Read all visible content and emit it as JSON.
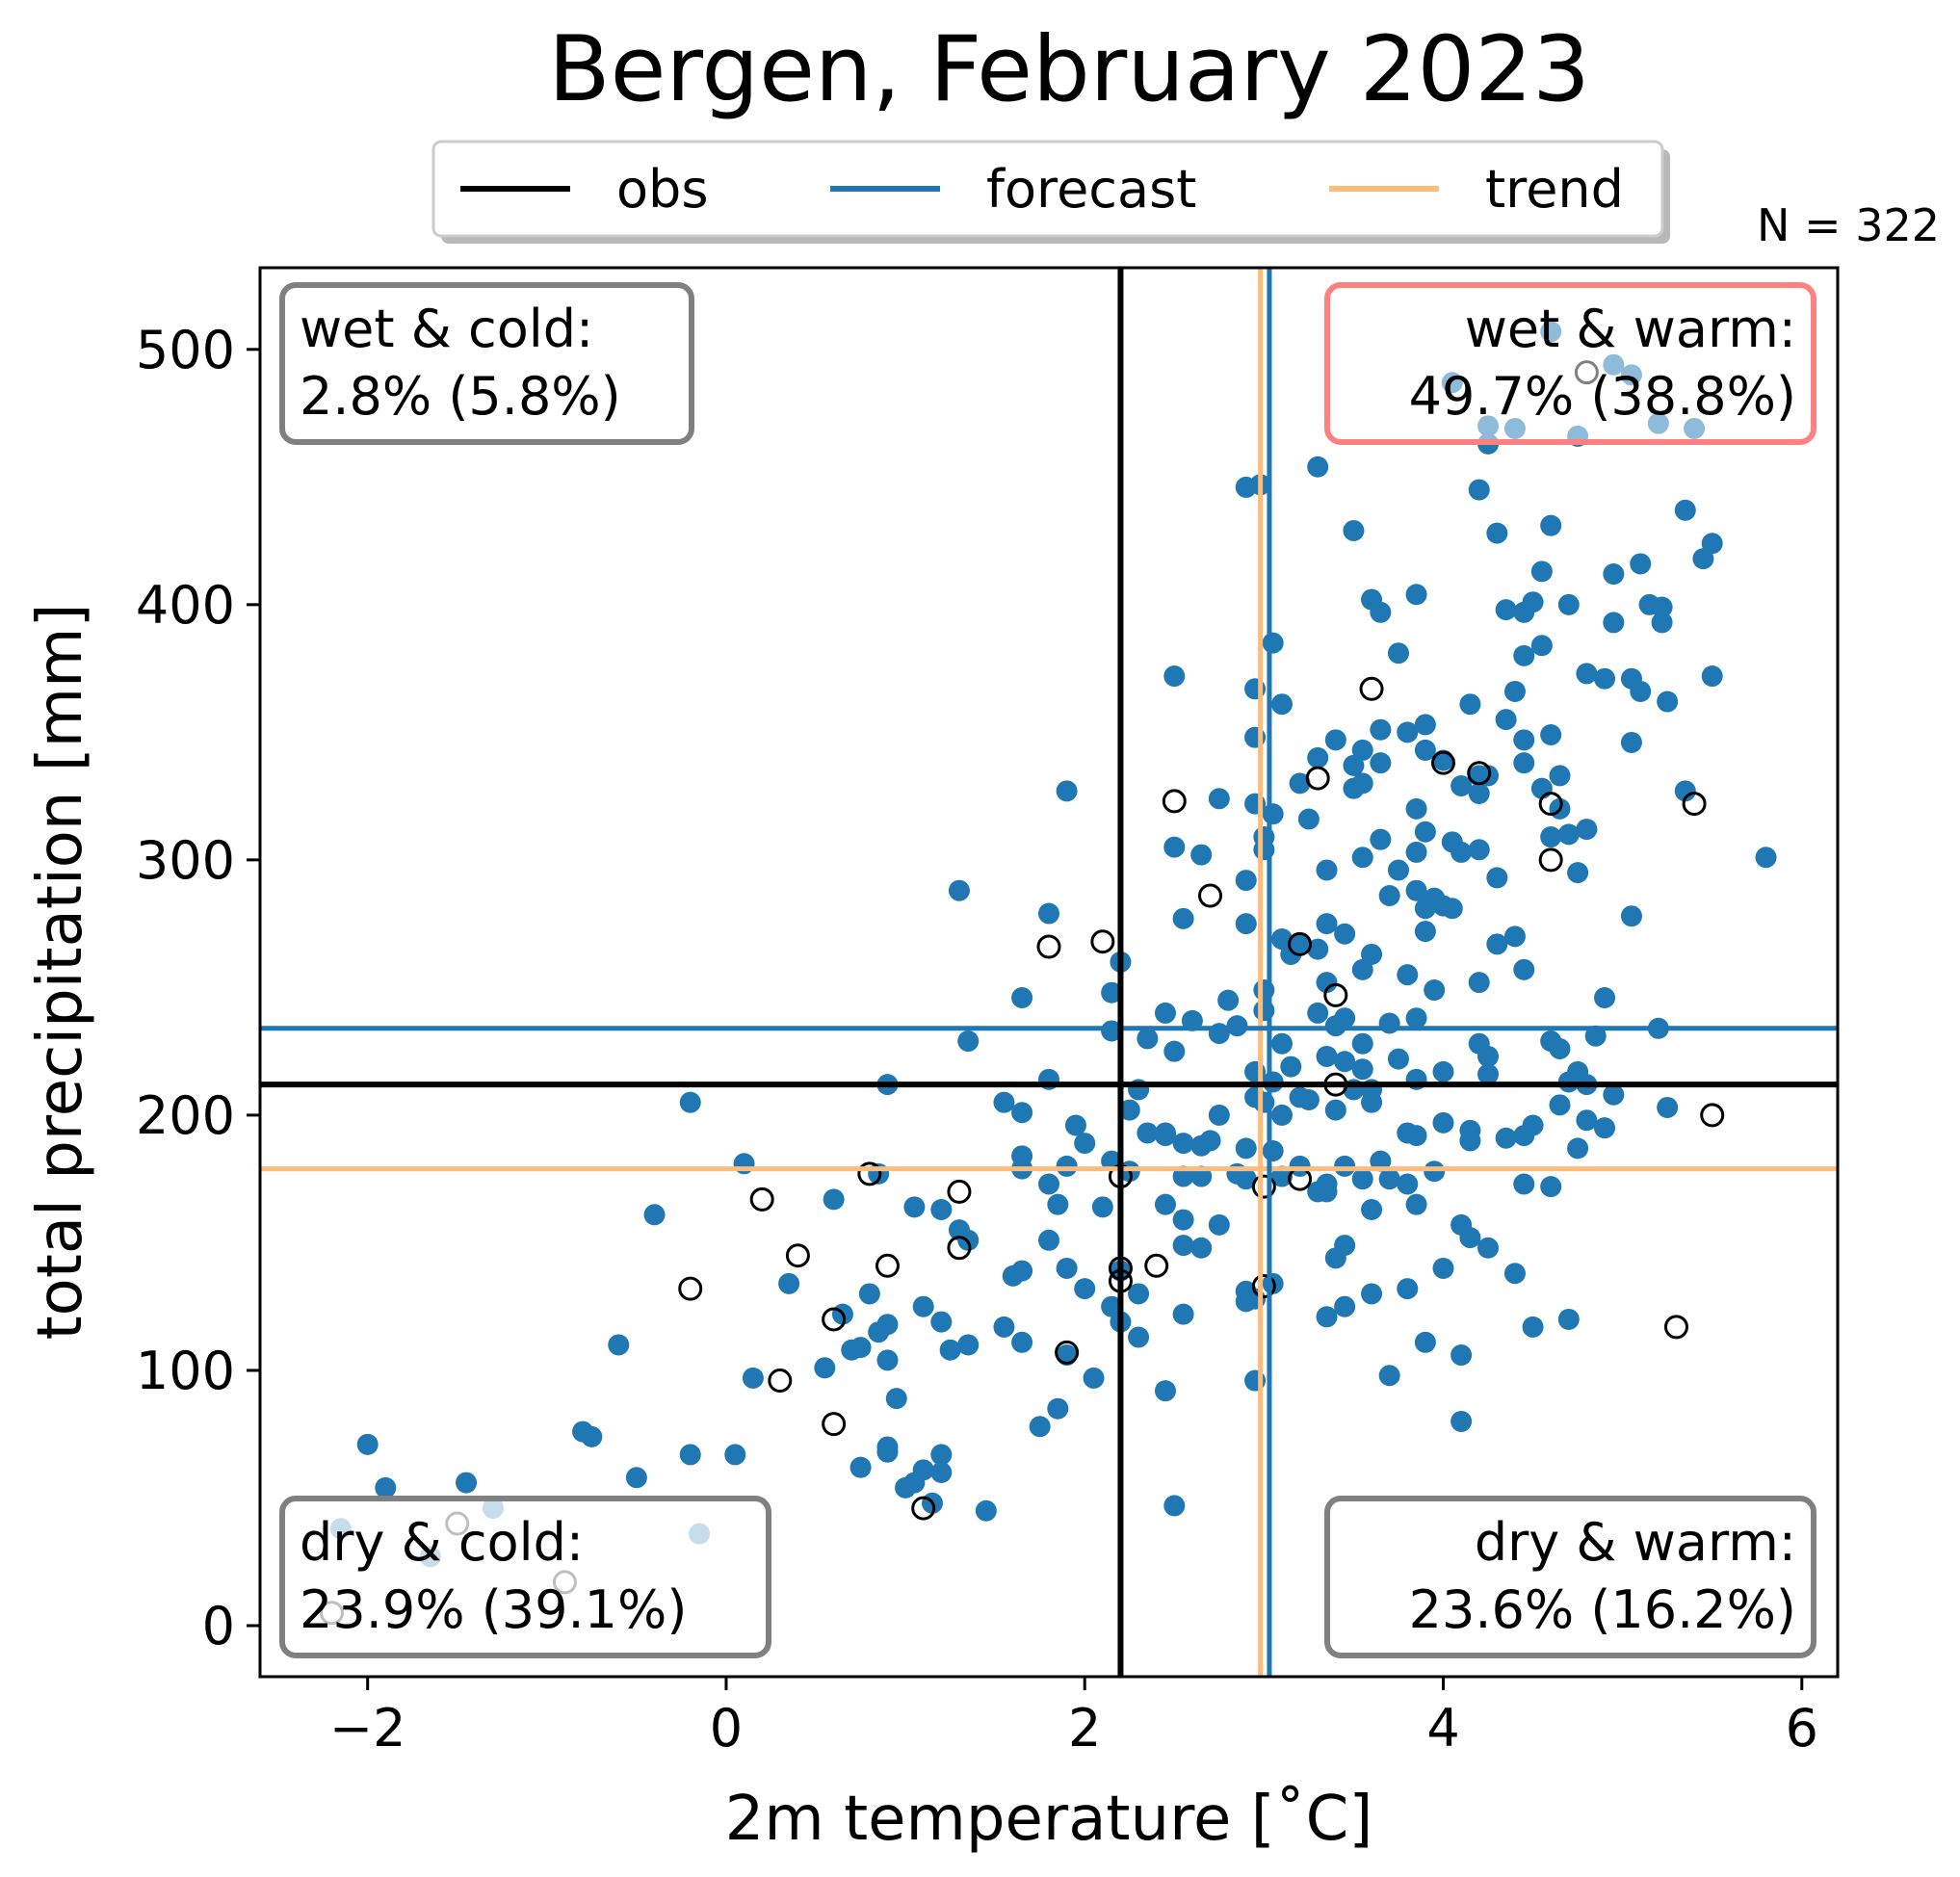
{
  "chart_data": {
    "type": "scatter",
    "title": "Bergen, February 2023",
    "xlabel": "2m temperature [˚C]",
    "ylabel": "total precipitation [mm]",
    "xlim": [
      -2.6,
      6.2
    ],
    "ylim": [
      -20,
      532
    ],
    "xticks": [
      -2,
      0,
      2,
      4,
      6
    ],
    "xtick_labels": [
      "−2",
      "0",
      "2",
      "4",
      "6"
    ],
    "yticks": [
      0,
      100,
      200,
      300,
      400,
      500
    ],
    "ytick_labels": [
      "0",
      "100",
      "200",
      "300",
      "400",
      "500"
    ],
    "grid": false,
    "legend_placement": "top-center",
    "count_label": "N = 322",
    "legend": [
      {
        "name": "obs",
        "color": "#000000"
      },
      {
        "name": "forecast",
        "color": "#1f77b4"
      },
      {
        "name": "trend",
        "color": "#ffbb78"
      }
    ],
    "reference_lines": {
      "obs": {
        "x": 2.2,
        "y": 212,
        "color": "#000000"
      },
      "forecast": {
        "x": 3.03,
        "y": 234,
        "color": "#1f77b4"
      },
      "trend": {
        "x": 2.98,
        "y": 179,
        "color": "#ffbb78"
      }
    },
    "quadrants": [
      {
        "line1": "wet & cold:",
        "line2": "2.8% (5.8%)",
        "position": "top-left",
        "edge": "#808080"
      },
      {
        "line1": "wet & warm:",
        "line2": "49.7% (38.8%)",
        "position": "top-right",
        "edge": "#ff8080"
      },
      {
        "line1": "dry & cold:",
        "line2": "23.9% (39.1%)",
        "position": "bottom-left",
        "edge": "#808080"
      },
      {
        "line1": "dry & warm:",
        "line2": "23.6% (16.2%)",
        "position": "bottom-right",
        "edge": "#808080"
      }
    ],
    "forecast_points": [
      [
        4.6,
        507
      ],
      [
        4.95,
        494
      ],
      [
        5.05,
        490
      ],
      [
        4.05,
        487
      ],
      [
        4.25,
        470
      ],
      [
        4.4,
        469
      ],
      [
        4.75,
        466
      ],
      [
        5.2,
        471
      ],
      [
        5.4,
        469
      ],
      [
        4.25,
        463
      ],
      [
        2.9,
        446
      ],
      [
        2.98,
        447
      ],
      [
        3.3,
        454
      ],
      [
        4.2,
        445
      ],
      [
        3.5,
        429
      ],
      [
        4.3,
        428
      ],
      [
        4.6,
        431
      ],
      [
        5.35,
        437
      ],
      [
        5.5,
        424
      ],
      [
        5.45,
        418
      ],
      [
        4.55,
        413
      ],
      [
        4.95,
        412
      ],
      [
        5.1,
        416
      ],
      [
        3.6,
        402
      ],
      [
        3.65,
        397
      ],
      [
        3.85,
        404
      ],
      [
        4.35,
        398
      ],
      [
        4.45,
        397
      ],
      [
        4.5,
        401
      ],
      [
        4.7,
        400
      ],
      [
        4.95,
        393
      ],
      [
        5.15,
        400
      ],
      [
        5.22,
        399
      ],
      [
        5.22,
        393
      ],
      [
        3.05,
        385
      ],
      [
        3.75,
        381
      ],
      [
        4.55,
        384
      ],
      [
        4.45,
        380
      ],
      [
        4.8,
        373
      ],
      [
        4.9,
        371
      ],
      [
        5.05,
        371
      ],
      [
        5.1,
        366
      ],
      [
        5.25,
        362
      ],
      [
        5.5,
        372
      ],
      [
        2.5,
        372
      ],
      [
        2.95,
        367
      ],
      [
        3.1,
        361
      ],
      [
        4.15,
        361
      ],
      [
        4.4,
        366
      ],
      [
        2.95,
        348
      ],
      [
        3.4,
        347
      ],
      [
        3.55,
        343
      ],
      [
        3.65,
        351
      ],
      [
        3.8,
        350
      ],
      [
        3.9,
        353
      ],
      [
        3.3,
        340
      ],
      [
        3.5,
        337
      ],
      [
        3.65,
        338
      ],
      [
        3.9,
        343
      ],
      [
        4.0,
        339
      ],
      [
        4.2,
        333
      ],
      [
        4.35,
        355
      ],
      [
        4.45,
        347
      ],
      [
        4.45,
        338
      ],
      [
        4.6,
        349
      ],
      [
        5.05,
        346
      ],
      [
        1.9,
        327
      ],
      [
        2.75,
        324
      ],
      [
        2.95,
        322
      ],
      [
        3.05,
        318
      ],
      [
        3.2,
        330
      ],
      [
        3.5,
        328
      ],
      [
        3.55,
        330
      ],
      [
        3.85,
        320
      ],
      [
        3.9,
        311
      ],
      [
        4.1,
        329
      ],
      [
        4.2,
        326
      ],
      [
        4.25,
        333
      ],
      [
        4.55,
        328
      ],
      [
        4.65,
        333
      ],
      [
        4.65,
        320
      ],
      [
        4.6,
        309
      ],
      [
        4.7,
        310
      ],
      [
        4.8,
        312
      ],
      [
        5.35,
        327
      ],
      [
        5.8,
        301
      ],
      [
        2.5,
        305
      ],
      [
        2.65,
        302
      ],
      [
        2.9,
        292
      ],
      [
        3.0,
        309
      ],
      [
        3.0,
        304
      ],
      [
        3.25,
        316
      ],
      [
        3.35,
        296
      ],
      [
        3.55,
        301
      ],
      [
        3.65,
        308
      ],
      [
        3.75,
        296
      ],
      [
        3.85,
        303
      ],
      [
        4.05,
        307
      ],
      [
        4.1,
        303
      ],
      [
        4.2,
        304
      ],
      [
        4.3,
        293
      ],
      [
        4.75,
        295
      ],
      [
        1.3,
        288
      ],
      [
        1.8,
        279
      ],
      [
        2.55,
        277
      ],
      [
        2.9,
        275
      ],
      [
        3.1,
        269
      ],
      [
        3.2,
        267
      ],
      [
        3.35,
        275
      ],
      [
        3.45,
        271
      ],
      [
        3.7,
        286
      ],
      [
        3.85,
        288
      ],
      [
        3.9,
        281
      ],
      [
        3.95,
        285
      ],
      [
        4.0,
        282
      ],
      [
        4.05,
        281
      ],
      [
        4.3,
        267
      ],
      [
        4.4,
        270
      ],
      [
        5.05,
        278
      ],
      [
        3.9,
        272
      ],
      [
        2.2,
        260
      ],
      [
        2.15,
        248
      ],
      [
        2.35,
        230
      ],
      [
        2.8,
        245
      ],
      [
        3.0,
        249
      ],
      [
        3.15,
        263
      ],
      [
        3.3,
        265
      ],
      [
        3.35,
        252
      ],
      [
        3.55,
        257
      ],
      [
        3.6,
        263
      ],
      [
        3.8,
        255
      ],
      [
        3.95,
        249
      ],
      [
        4.2,
        252
      ],
      [
        4.45,
        257
      ],
      [
        1.65,
        246
      ],
      [
        2.45,
        240
      ],
      [
        2.6,
        237
      ],
      [
        2.75,
        232
      ],
      [
        2.85,
        235
      ],
      [
        3.0,
        241
      ],
      [
        3.1,
        228
      ],
      [
        3.3,
        240
      ],
      [
        3.4,
        235
      ],
      [
        3.45,
        238
      ],
      [
        3.55,
        228
      ],
      [
        3.7,
        236
      ],
      [
        3.85,
        238
      ],
      [
        4.2,
        228
      ],
      [
        4.6,
        229
      ],
      [
        4.9,
        246
      ],
      [
        5.2,
        234
      ],
      [
        4.65,
        226
      ],
      [
        4.75,
        217
      ],
      [
        1.35,
        229
      ],
      [
        2.15,
        233
      ],
      [
        2.5,
        225
      ],
      [
        2.95,
        217
      ],
      [
        3.05,
        213
      ],
      [
        3.15,
        219
      ],
      [
        3.35,
        223
      ],
      [
        3.45,
        221
      ],
      [
        3.55,
        218
      ],
      [
        3.6,
        210
      ],
      [
        3.75,
        222
      ],
      [
        3.85,
        214
      ],
      [
        4.0,
        217
      ],
      [
        4.25,
        223
      ],
      [
        4.25,
        216
      ],
      [
        4.7,
        213
      ],
      [
        4.8,
        212
      ],
      [
        4.85,
        231
      ],
      [
        0.9,
        212
      ],
      [
        1.8,
        214
      ],
      [
        2.3,
        210
      ],
      [
        2.25,
        202
      ],
      [
        2.35,
        193
      ],
      [
        2.45,
        193
      ],
      [
        2.55,
        189
      ],
      [
        2.65,
        188
      ],
      [
        2.75,
        200
      ],
      [
        2.95,
        207
      ],
      [
        3.0,
        205
      ],
      [
        3.1,
        200
      ],
      [
        3.2,
        207
      ],
      [
        3.25,
        206
      ],
      [
        3.4,
        202
      ],
      [
        3.5,
        210
      ],
      [
        3.6,
        205
      ],
      [
        3.8,
        193
      ],
      [
        3.85,
        192
      ],
      [
        4.0,
        197
      ],
      [
        4.15,
        194
      ],
      [
        4.15,
        190
      ],
      [
        4.35,
        191
      ],
      [
        4.45,
        192
      ],
      [
        4.5,
        196
      ],
      [
        4.65,
        204
      ],
      [
        4.75,
        187
      ],
      [
        4.8,
        198
      ],
      [
        4.9,
        195
      ],
      [
        4.95,
        208
      ],
      [
        5.25,
        203
      ],
      [
        -0.2,
        205
      ],
      [
        1.55,
        205
      ],
      [
        1.65,
        201
      ],
      [
        1.65,
        184
      ],
      [
        1.95,
        196
      ],
      [
        2.0,
        189
      ],
      [
        2.15,
        182
      ],
      [
        2.45,
        192
      ],
      [
        2.55,
        176
      ],
      [
        2.7,
        190
      ],
      [
        2.9,
        187
      ],
      [
        2.85,
        177
      ],
      [
        3.05,
        186
      ],
      [
        3.1,
        176
      ],
      [
        3.2,
        180
      ],
      [
        3.3,
        170
      ],
      [
        3.35,
        173
      ],
      [
        3.45,
        180
      ],
      [
        3.55,
        175
      ],
      [
        3.65,
        182
      ],
      [
        3.8,
        173
      ],
      [
        3.95,
        178
      ],
      [
        0.1,
        181
      ],
      [
        0.6,
        167
      ],
      [
        0.85,
        177
      ],
      [
        1.05,
        164
      ],
      [
        1.2,
        163
      ],
      [
        1.3,
        155
      ],
      [
        1.35,
        151
      ],
      [
        1.65,
        179
      ],
      [
        1.8,
        173
      ],
      [
        1.85,
        165
      ],
      [
        1.9,
        180
      ],
      [
        2.1,
        164
      ],
      [
        2.25,
        178
      ],
      [
        2.45,
        165
      ],
      [
        2.55,
        159
      ],
      [
        2.65,
        176
      ],
      [
        2.75,
        157
      ],
      [
        2.9,
        175
      ],
      [
        3.35,
        170
      ],
      [
        3.45,
        149
      ],
      [
        3.6,
        163
      ],
      [
        3.7,
        175
      ],
      [
        3.85,
        165
      ],
      [
        4.1,
        157
      ],
      [
        4.15,
        152
      ],
      [
        4.25,
        148
      ],
      [
        4.6,
        172
      ],
      [
        4.45,
        173
      ],
      [
        -0.4,
        161
      ],
      [
        0.35,
        134
      ],
      [
        0.55,
        101
      ],
      [
        0.65,
        122
      ],
      [
        0.8,
        130
      ],
      [
        0.75,
        109
      ],
      [
        0.85,
        115
      ],
      [
        0.9,
        118
      ],
      [
        1.1,
        125
      ],
      [
        1.2,
        119
      ],
      [
        1.35,
        110
      ],
      [
        1.6,
        137
      ],
      [
        1.65,
        139
      ],
      [
        1.8,
        151
      ],
      [
        1.9,
        140
      ],
      [
        2.0,
        132
      ],
      [
        2.2,
        139
      ],
      [
        2.15,
        125
      ],
      [
        2.3,
        130
      ],
      [
        2.55,
        149
      ],
      [
        2.65,
        148
      ],
      [
        2.9,
        131
      ],
      [
        2.95,
        128
      ],
      [
        3.05,
        134
      ],
      [
        3.4,
        144
      ],
      [
        3.45,
        125
      ],
      [
        3.6,
        130
      ],
      [
        3.8,
        132
      ],
      [
        4.0,
        140
      ],
      [
        4.4,
        138
      ],
      [
        -0.6,
        110
      ],
      [
        0.15,
        97
      ],
      [
        0.7,
        108
      ],
      [
        0.9,
        104
      ],
      [
        0.95,
        89
      ],
      [
        1.25,
        108
      ],
      [
        1.55,
        117
      ],
      [
        1.65,
        111
      ],
      [
        1.9,
        106
      ],
      [
        2.2,
        119
      ],
      [
        2.3,
        113
      ],
      [
        2.55,
        122
      ],
      [
        2.9,
        127
      ],
      [
        3.35,
        121
      ],
      [
        3.9,
        111
      ],
      [
        4.1,
        106
      ],
      [
        4.5,
        117
      ],
      [
        4.7,
        120
      ],
      [
        -2.0,
        71
      ],
      [
        -1.9,
        54
      ],
      [
        -1.45,
        56
      ],
      [
        -0.8,
        76
      ],
      [
        -0.75,
        74
      ],
      [
        -0.5,
        58
      ],
      [
        -0.2,
        67
      ],
      [
        0.05,
        67
      ],
      [
        0.75,
        62
      ],
      [
        0.9,
        70
      ],
      [
        1.0,
        54
      ],
      [
        1.1,
        61
      ],
      [
        1.15,
        48
      ],
      [
        1.2,
        67
      ],
      [
        1.45,
        45
      ],
      [
        1.75,
        78
      ],
      [
        1.85,
        85
      ],
      [
        2.05,
        97
      ],
      [
        2.45,
        92
      ],
      [
        2.95,
        96
      ],
      [
        3.7,
        98
      ],
      [
        4.1,
        80
      ],
      [
        2.5,
        47
      ],
      [
        1.05,
        56
      ],
      [
        0.9,
        68
      ],
      [
        1.2,
        60
      ]
    ],
    "forecast_faded_points": [
      [
        -2.15,
        38
      ],
      [
        -1.65,
        27
      ],
      [
        -1.3,
        46
      ],
      [
        -0.15,
        36
      ]
    ],
    "obs_points": [
      [
        4.8,
        491
      ],
      [
        3.6,
        367
      ],
      [
        4.0,
        338
      ],
      [
        4.2,
        334
      ],
      [
        3.3,
        332
      ],
      [
        2.5,
        323
      ],
      [
        4.6,
        322
      ],
      [
        5.4,
        322
      ],
      [
        4.6,
        300
      ],
      [
        2.7,
        286
      ],
      [
        2.1,
        268
      ],
      [
        1.8,
        266
      ],
      [
        3.2,
        267
      ],
      [
        3.4,
        247
      ],
      [
        3.4,
        212
      ],
      [
        5.5,
        200
      ],
      [
        0.8,
        177
      ],
      [
        1.3,
        170
      ],
      [
        0.2,
        167
      ],
      [
        2.2,
        176
      ],
      [
        3.0,
        172
      ],
      [
        3.2,
        175
      ],
      [
        0.4,
        145
      ],
      [
        0.9,
        141
      ],
      [
        1.3,
        148
      ],
      [
        2.2,
        140
      ],
      [
        2.4,
        141
      ],
      [
        -0.2,
        132
      ],
      [
        2.2,
        135
      ],
      [
        3.0,
        133
      ],
      [
        0.6,
        120
      ],
      [
        1.9,
        107
      ],
      [
        5.3,
        117
      ],
      [
        0.3,
        96
      ],
      [
        0.6,
        79
      ],
      [
        1.1,
        46
      ]
    ],
    "obs_faded_points": [
      [
        -1.5,
        40
      ],
      [
        -0.9,
        17
      ],
      [
        -2.2,
        5
      ]
    ]
  }
}
